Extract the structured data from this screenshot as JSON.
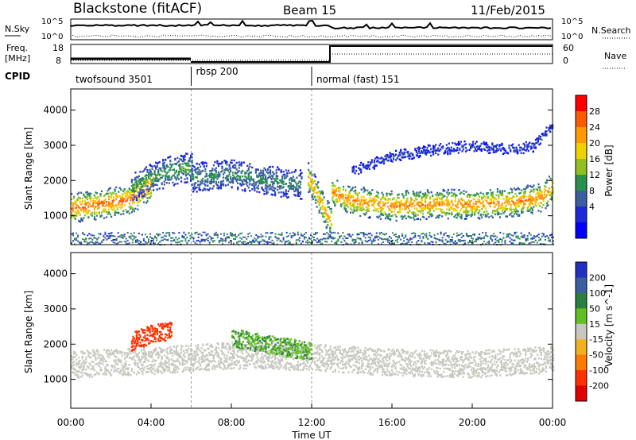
{
  "header": {
    "station": "Blackstone (fitACF)",
    "beam": "Beam 15",
    "date": "11/Feb/2015"
  },
  "noise_panel": {
    "left_label": "N.Sky",
    "right_label": "N.Search",
    "left_ticks": [
      "10^5",
      "10^0"
    ],
    "right_ticks": [
      "10^5",
      "10^0"
    ]
  },
  "freq_panel": {
    "left_label_top": "Freq.",
    "left_label_unit": "[MHz]",
    "left_ticks": [
      "18",
      "8"
    ],
    "right_label": "Nave",
    "right_ticks": [
      "60",
      "0"
    ]
  },
  "cpid": {
    "label": "CPID",
    "segments": [
      {
        "name": "twofsound",
        "id": "3501",
        "start": 0,
        "end": 6
      },
      {
        "name": "rbsp",
        "id": "200",
        "start": 6,
        "end": 12
      },
      {
        "name": "normal (fast)",
        "id": "151",
        "start": 12,
        "end": 24
      }
    ]
  },
  "power_colorbar": {
    "label": "Power [dB]",
    "ticks": [
      "28",
      "24",
      "20",
      "16",
      "12",
      "8",
      "4"
    ],
    "colors": [
      "#ff0000",
      "#ff5a00",
      "#ff9a00",
      "#f0d000",
      "#90c020",
      "#2a9050",
      "#3a5ea0",
      "#1a2ad8",
      "#0000ff"
    ]
  },
  "velocity_colorbar": {
    "label": "Velocity [m s^-1]",
    "ticks": [
      "200",
      "100",
      "50",
      "15",
      "-15",
      "-50",
      "-100",
      "-200"
    ],
    "colors": [
      "#2030c0",
      "#3a60a0",
      "#2a8040",
      "#60c020",
      "#c8c8c0",
      "#f0b020",
      "#ff7a00",
      "#ff3000",
      "#e00000"
    ]
  },
  "x_axis": {
    "title": "Time UT",
    "ticks": [
      "00:00",
      "04:00",
      "08:00",
      "12:00",
      "16:00",
      "20:00",
      "00:00"
    ]
  },
  "chart_data": [
    {
      "type": "heatmap",
      "title": "Power",
      "xlabel": "Time UT",
      "ylabel": "Slant Range [km]",
      "x_unit": "hours UT",
      "xlim": [
        0,
        24
      ],
      "ylim": [
        180,
        4600
      ],
      "yticks": [
        1000,
        2000,
        3000,
        4000
      ],
      "colorbar": {
        "label": "Power [dB]",
        "range": [
          0,
          32
        ]
      },
      "features": [
        {
          "desc": "strong scatter band",
          "t": [
            0,
            1,
            2,
            3,
            3.5,
            4
          ],
          "range": [
            1250,
            1300,
            1400,
            1500,
            1700,
            1900
          ],
          "value_db": 28
        },
        {
          "desc": "rising band",
          "t": [
            3,
            4,
            5,
            6
          ],
          "range": [
            1800,
            2100,
            2300,
            2400
          ],
          "value_db": 14
        },
        {
          "desc": "mid-day patch",
          "t": [
            6,
            8,
            10,
            11.5
          ],
          "range": [
            2100,
            2200,
            2000,
            1900
          ],
          "value_db": 12
        },
        {
          "desc": "descending echo",
          "t": [
            11.8,
            12.2,
            12.6,
            13
          ],
          "range": [
            2100,
            1700,
            1200,
            800
          ],
          "value_db": 24
        },
        {
          "desc": "evening band",
          "t": [
            13,
            14,
            16,
            18,
            20,
            22,
            23.5,
            24
          ],
          "range": [
            1700,
            1450,
            1300,
            1350,
            1350,
            1400,
            1550,
            1900
          ],
          "value_db": 26
        },
        {
          "desc": "upper arc",
          "t": [
            14,
            16,
            18,
            20,
            22,
            23,
            24
          ],
          "range": [
            2300,
            2700,
            2900,
            3000,
            2900,
            3000,
            3600
          ],
          "value_db": 6
        }
      ]
    },
    {
      "type": "heatmap",
      "title": "Velocity",
      "xlabel": "Time UT",
      "ylabel": "Slant Range [km]",
      "x_unit": "hours UT",
      "xlim": [
        0,
        24
      ],
      "ylim": [
        180,
        4600
      ],
      "yticks": [
        1000,
        2000,
        3000,
        4000
      ],
      "colorbar": {
        "label": "Velocity [m s^-1]",
        "range": [
          -250,
          250
        ]
      },
      "features": [
        {
          "desc": "ground scatter band",
          "t": [
            0,
            4,
            8,
            12,
            16,
            20,
            24
          ],
          "range": [
            1450,
            1550,
            1700,
            1650,
            1500,
            1450,
            1600
          ],
          "value_ms": 0
        },
        {
          "desc": "negative patch",
          "t": [
            3,
            4,
            5
          ],
          "range": [
            2100,
            2300,
            2400
          ],
          "value_ms": -150
        },
        {
          "desc": "positive patch",
          "t": [
            8,
            10,
            12
          ],
          "range": [
            2200,
            2000,
            1800
          ],
          "value_ms": 40
        }
      ]
    }
  ]
}
